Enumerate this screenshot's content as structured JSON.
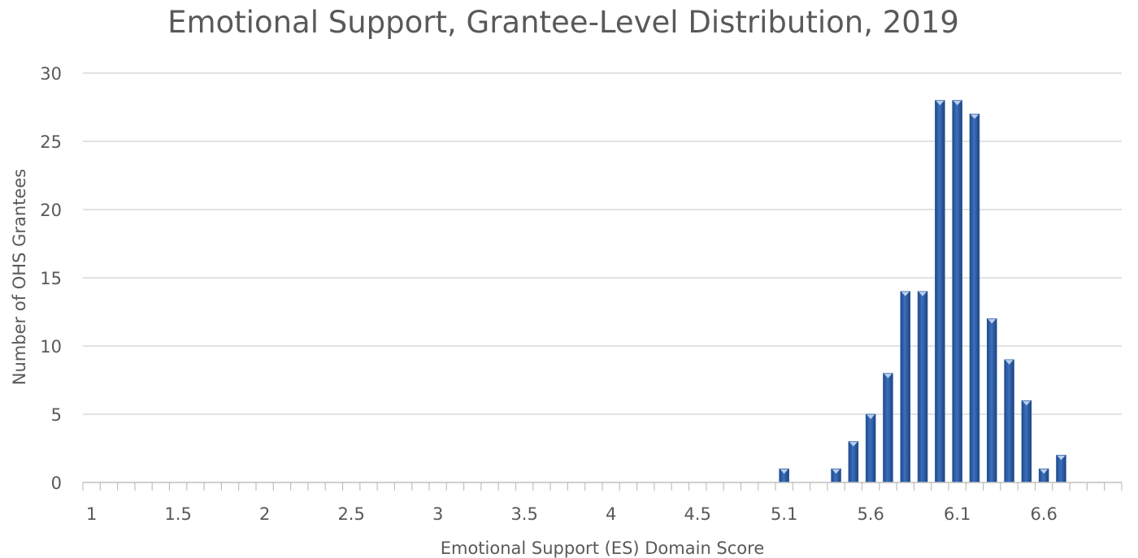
{
  "chart_data": {
    "type": "bar",
    "title": "Emotional Support, Grantee-Level Distribution, 2019",
    "xlabel": "Emotional Support (ES) Domain Score",
    "ylabel": "Number of OHS Grantees",
    "x_tick_labels": [
      "1",
      "1.5",
      "2",
      "2.5",
      "3",
      "3.5",
      "4",
      "4.5",
      "5.1",
      "5.6",
      "6.1",
      "6.6"
    ],
    "y_tick_labels": [
      "0",
      "5",
      "10",
      "15",
      "20",
      "25",
      "30"
    ],
    "ylim": [
      0,
      30
    ],
    "grid": "horizontal",
    "bar_color": "#2e5da3",
    "categories": [
      "1",
      "1.1",
      "1.2",
      "1.3",
      "1.4",
      "1.5",
      "1.6",
      "1.7",
      "1.8",
      "1.9",
      "2",
      "2.1",
      "2.2",
      "2.3",
      "2.4",
      "2.5",
      "2.6",
      "2.7",
      "2.8",
      "2.9",
      "3",
      "3.1",
      "3.2",
      "3.3",
      "3.4",
      "3.5",
      "3.6",
      "3.7",
      "3.8",
      "3.9",
      "4",
      "4.1",
      "4.2",
      "4.3",
      "4.4",
      "4.5",
      "4.6",
      "4.7",
      "4.8",
      "4.9",
      "5.1",
      "5.2",
      "5.3",
      "5.4",
      "5.5",
      "5.6",
      "5.7",
      "5.8",
      "5.9",
      "6",
      "6.1",
      "6.2",
      "6.3",
      "6.4",
      "6.5",
      "6.6",
      "6.7",
      "6.8",
      "6.9",
      "7"
    ],
    "values": [
      0,
      0,
      0,
      0,
      0,
      0,
      0,
      0,
      0,
      0,
      0,
      0,
      0,
      0,
      0,
      0,
      0,
      0,
      0,
      0,
      0,
      0,
      0,
      0,
      0,
      0,
      0,
      0,
      0,
      0,
      0,
      0,
      0,
      0,
      0,
      0,
      0,
      0,
      0,
      0,
      1,
      0,
      0,
      1,
      3,
      5,
      8,
      14,
      14,
      28,
      28,
      27,
      12,
      9,
      6,
      1,
      2,
      0,
      0,
      0
    ]
  }
}
